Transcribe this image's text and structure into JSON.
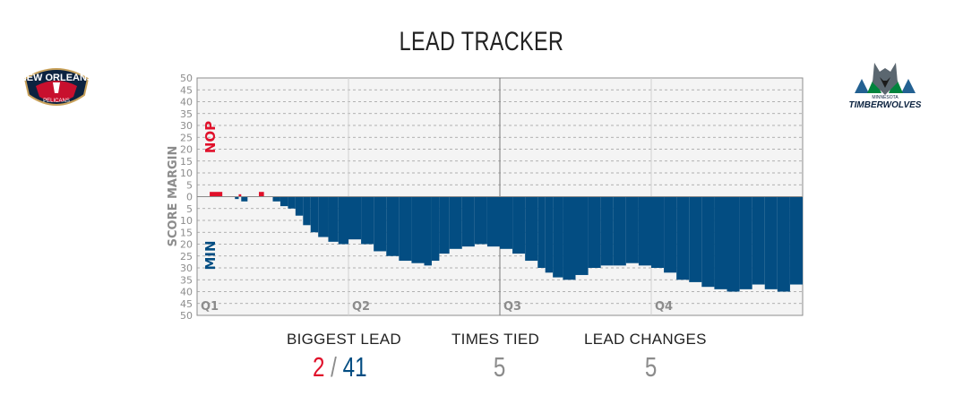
{
  "title": "LEAD TRACKER",
  "teams": {
    "home": {
      "abbr": "NOP",
      "color": "#e0102a",
      "logo_lines": [
        "NEW ORLEANS",
        "PELICANS"
      ]
    },
    "away": {
      "abbr": "MIN",
      "color": "#034d82",
      "logo_lines": [
        "MINNESOTA",
        "TIMBERWOLVES"
      ]
    }
  },
  "chart_data": {
    "type": "area",
    "ylabel": "SCORE MARGIN",
    "ylim": [
      -50,
      50
    ],
    "yticks": [
      50,
      45,
      40,
      35,
      30,
      25,
      20,
      15,
      10,
      5,
      0,
      5,
      10,
      15,
      20,
      25,
      30,
      35,
      40,
      45,
      50
    ],
    "quarters": [
      "Q1",
      "Q2",
      "Q3",
      "Q4"
    ],
    "x_unit": "minutes elapsed",
    "xlim": [
      0,
      48
    ],
    "grid": true,
    "margin_series": [
      [
        0.3,
        0
      ],
      [
        1.0,
        2
      ],
      [
        2.0,
        0
      ],
      [
        3.0,
        -1
      ],
      [
        3.3,
        1
      ],
      [
        3.5,
        -2
      ],
      [
        4.0,
        0
      ],
      [
        4.9,
        2
      ],
      [
        5.3,
        0
      ],
      [
        6.0,
        -2
      ],
      [
        6.6,
        -4
      ],
      [
        7.2,
        -5
      ],
      [
        7.8,
        -8
      ],
      [
        8.4,
        -12
      ],
      [
        9.0,
        -15
      ],
      [
        9.6,
        -17
      ],
      [
        10.4,
        -19
      ],
      [
        11.2,
        -20
      ],
      [
        12.0,
        -18
      ],
      [
        13.0,
        -20
      ],
      [
        14.0,
        -23
      ],
      [
        15.0,
        -25
      ],
      [
        16.0,
        -27
      ],
      [
        17.0,
        -28
      ],
      [
        18.0,
        -29
      ],
      [
        18.6,
        -27
      ],
      [
        19.2,
        -24
      ],
      [
        20.0,
        -22
      ],
      [
        21.0,
        -21
      ],
      [
        22.0,
        -20
      ],
      [
        23.0,
        -21
      ],
      [
        24.0,
        -22
      ],
      [
        25.0,
        -24
      ],
      [
        26.0,
        -27
      ],
      [
        27.0,
        -30
      ],
      [
        27.6,
        -32
      ],
      [
        28.2,
        -34
      ],
      [
        29.0,
        -35
      ],
      [
        30.0,
        -33
      ],
      [
        31.0,
        -30
      ],
      [
        32.0,
        -29
      ],
      [
        33.0,
        -29
      ],
      [
        34.0,
        -28
      ],
      [
        35.0,
        -29
      ],
      [
        36.0,
        -30
      ],
      [
        37.0,
        -32
      ],
      [
        38.0,
        -35
      ],
      [
        39.0,
        -36
      ],
      [
        40.0,
        -38
      ],
      [
        41.0,
        -39
      ],
      [
        42.0,
        -40
      ],
      [
        43.0,
        -39
      ],
      [
        44.0,
        -37
      ],
      [
        45.0,
        -39
      ],
      [
        46.0,
        -40
      ],
      [
        47.0,
        -37
      ],
      [
        48.0,
        -35
      ]
    ]
  },
  "stats": [
    {
      "label": "BIGGEST LEAD",
      "home_value": "2",
      "separator": "/",
      "away_value": "41"
    },
    {
      "label": "TIMES TIED",
      "value": "5"
    },
    {
      "label": "LEAD CHANGES",
      "value": "5"
    }
  ]
}
